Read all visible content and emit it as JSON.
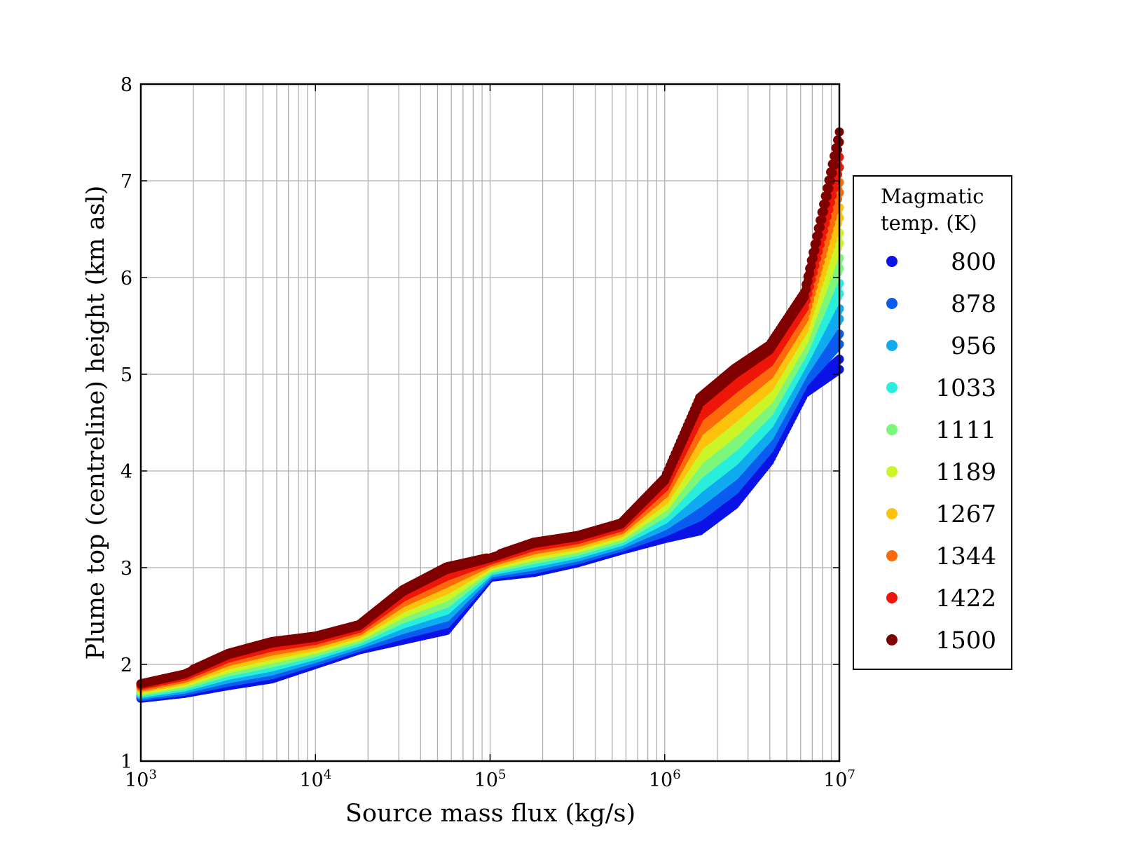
{
  "chart_data": {
    "type": "scatter",
    "title": "",
    "xlabel": "Source mass flux (kg/s)",
    "ylabel": "Plume top (centreline) height (km asl)",
    "xscale": "log",
    "xlim": [
      1000,
      10000000
    ],
    "ylim": [
      1,
      8
    ],
    "grid": true,
    "x_ticks": [
      {
        "base": "10",
        "exp": "3",
        "value": 1000
      },
      {
        "base": "10",
        "exp": "4",
        "value": 10000
      },
      {
        "base": "10",
        "exp": "5",
        "value": 100000
      },
      {
        "base": "10",
        "exp": "6",
        "value": 1000000
      },
      {
        "base": "10",
        "exp": "7",
        "value": 10000000
      }
    ],
    "y_ticks": [
      "1",
      "2",
      "3",
      "4",
      "5",
      "6",
      "7",
      "8"
    ],
    "legend": {
      "title_line1": "Magmatic",
      "title_line2": "temp. (K)",
      "placement": "right, outside plot",
      "entries": [
        {
          "label": "800",
          "color": "#0a12e6"
        },
        {
          "label": "878",
          "color": "#0a5cf0"
        },
        {
          "label": "956",
          "color": "#10aaf0"
        },
        {
          "label": "1033",
          "color": "#28eedc"
        },
        {
          "label": "1111",
          "color": "#7cf77c"
        },
        {
          "label": "1189",
          "color": "#ccf528"
        },
        {
          "label": "1267",
          "color": "#fcc20c"
        },
        {
          "label": "1344",
          "color": "#fc6a0a"
        },
        {
          "label": "1422",
          "color": "#ee1608"
        },
        {
          "label": "1500",
          "color": "#800000"
        }
      ]
    },
    "log10_x_samples": [
      3.0,
      3.25,
      3.5,
      3.75,
      4.0,
      4.25,
      4.5,
      4.75,
      5.0,
      5.25,
      5.5,
      5.75,
      6.0,
      6.2,
      6.4,
      6.6,
      6.8,
      7.0
    ],
    "series_envelope": [
      {
        "temp": "800",
        "y": [
          1.65,
          1.7,
          1.78,
          1.85,
          2.0,
          2.15,
          2.25,
          2.35,
          2.9,
          2.95,
          3.05,
          3.18,
          3.3,
          3.38,
          3.65,
          4.1,
          4.8,
          5.05
        ]
      },
      {
        "temp": "1500",
        "y": [
          1.8,
          1.9,
          2.1,
          2.22,
          2.28,
          2.4,
          2.75,
          2.98,
          3.1,
          3.25,
          3.32,
          3.45,
          3.9,
          4.7,
          5.0,
          5.25,
          5.8,
          7.4
        ]
      }
    ],
    "notes": "Dense per-temperature point bands between the 800 K (lowest) and 1500 K (highest) envelopes; intermediate temperatures interpolate between them."
  }
}
